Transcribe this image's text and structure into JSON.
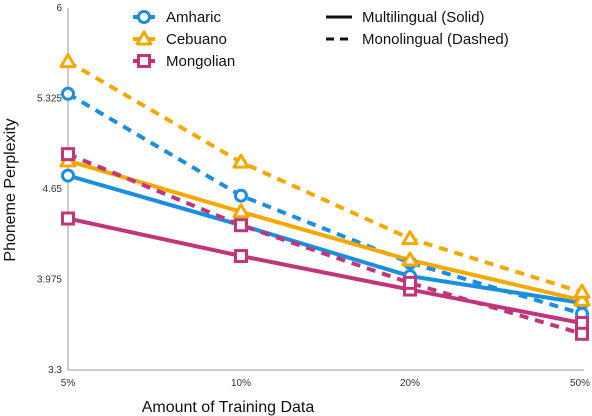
{
  "chart_data": {
    "type": "line",
    "xlabel": "Amount of Training Data",
    "ylabel": "Phoneme Perplexity",
    "categories": [
      "5%",
      "10%",
      "20%",
      "50%"
    ],
    "yticks": [
      "3.3",
      "3.975",
      "4.65",
      "5.325",
      "6"
    ],
    "ylim": [
      3.3,
      6
    ],
    "grid": false,
    "legend_languages": [
      {
        "name": "Amharic",
        "color": "#1a8fe0",
        "marker": "circle"
      },
      {
        "name": "Cebuano",
        "color": "#f5a800",
        "marker": "triangle"
      },
      {
        "name": "Mongolian",
        "color": "#c2357a",
        "marker": "square"
      }
    ],
    "legend_styles": [
      {
        "name": "Multilingual (Solid)",
        "dash": "solid"
      },
      {
        "name": "Monolingual (Dashed)",
        "dash": "dashed"
      }
    ],
    "series": [
      {
        "language": "Amharic",
        "style": "solid",
        "color": "#1a8fe0",
        "marker": "circle",
        "values": [
          4.75,
          4.38,
          4.0,
          3.8
        ]
      },
      {
        "language": "Amharic",
        "style": "dashed",
        "color": "#1a8fe0",
        "marker": "circle",
        "values": [
          5.36,
          4.6,
          4.1,
          3.72
        ]
      },
      {
        "language": "Cebuano",
        "style": "solid",
        "color": "#f5a800",
        "marker": "triangle",
        "values": [
          4.86,
          4.48,
          4.12,
          3.82
        ]
      },
      {
        "language": "Cebuano",
        "style": "dashed",
        "color": "#f5a800",
        "marker": "triangle",
        "values": [
          5.6,
          4.85,
          4.28,
          3.88
        ]
      },
      {
        "language": "Mongolian",
        "style": "solid",
        "color": "#c2357a",
        "marker": "square",
        "values": [
          4.43,
          4.15,
          3.9,
          3.65
        ]
      },
      {
        "language": "Mongolian",
        "style": "dashed",
        "color": "#c2357a",
        "marker": "square",
        "values": [
          4.91,
          4.38,
          3.95,
          3.57
        ]
      }
    ]
  }
}
